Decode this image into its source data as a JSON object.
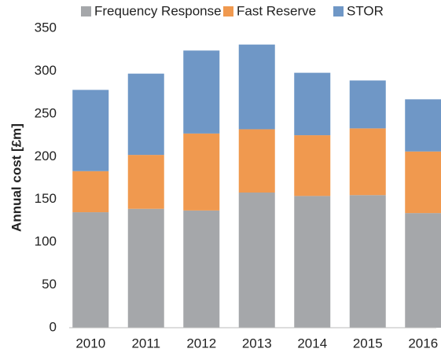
{
  "chart_data": {
    "type": "stacked_bar",
    "y_label": "Annual cost [£m]",
    "categories": [
      "2010",
      "2011",
      "2012",
      "2013",
      "2014",
      "2015",
      "2016"
    ],
    "series": [
      {
        "name": "Frequency Response",
        "color": "#a5a7aa",
        "values": [
          135,
          139,
          137,
          158,
          154,
          155,
          134
        ]
      },
      {
        "name": "Fast Reserve",
        "color": "#f0994f",
        "values": [
          48,
          63,
          90,
          74,
          71,
          78,
          72
        ]
      },
      {
        "name": "STOR",
        "color": "#6f97c6",
        "values": [
          95,
          95,
          97,
          99,
          73,
          56,
          61
        ]
      }
    ],
    "ylim": [
      0,
      350
    ],
    "yticks": [
      0,
      50,
      100,
      150,
      200,
      250,
      300,
      350
    ],
    "grid": false,
    "legend": "top"
  }
}
